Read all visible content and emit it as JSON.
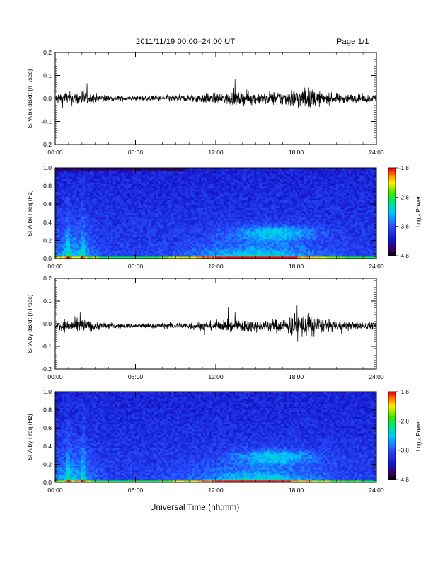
{
  "header": {
    "title": "2011/11/19   00:00–24:00 UT",
    "page": "Page 1/1"
  },
  "chart_data": [
    {
      "type": "line",
      "ylabel": "SPA bx dB/dt (nT/sec)",
      "ylim": [
        -0.2,
        0.2
      ],
      "yticks": [
        "0.2",
        "0.1",
        "0.0",
        "-0.1",
        "-0.2"
      ],
      "xlim": [
        0,
        24
      ],
      "xticks": [
        "00:00",
        "06:00",
        "12:00",
        "18:00",
        "24:00"
      ],
      "series": [
        {
          "x": [
            0,
            0.5,
            1,
            1.5,
            2,
            2.5,
            3,
            3.5,
            4,
            4.5,
            5,
            5.5,
            6,
            6.5,
            7,
            7.5,
            8,
            8.5,
            9,
            9.5,
            10,
            10.5,
            11,
            11.5,
            12,
            12.5,
            13,
            13.5,
            14,
            14.5,
            15,
            15.5,
            16,
            16.5,
            17,
            17.5,
            18,
            18.5,
            19,
            19.5,
            20,
            20.5,
            21,
            21.5,
            22,
            22.5,
            23,
            23.5,
            24
          ],
          "amplitude": [
            0.04,
            0.06,
            0.05,
            0.05,
            0.07,
            0.04,
            0.035,
            0.03,
            0.025,
            0.02,
            0.02,
            0.018,
            0.018,
            0.02,
            0.02,
            0.022,
            0.025,
            0.025,
            0.028,
            0.03,
            0.03,
            0.035,
            0.035,
            0.04,
            0.04,
            0.045,
            0.05,
            0.06,
            0.05,
            0.05,
            0.045,
            0.045,
            0.05,
            0.05,
            0.055,
            0.06,
            0.09,
            0.07,
            0.08,
            0.06,
            0.05,
            0.04,
            0.04,
            0.035,
            0.035,
            0.03,
            0.03,
            0.03,
            0.03
          ]
        }
      ]
    },
    {
      "type": "heatmap",
      "ylabel": "SPA bx Freq (Hz)",
      "ylim": [
        0.0,
        1.0
      ],
      "yticks": [
        "1.0",
        "0.8",
        "0.6",
        "0.4",
        "0.2",
        "0.0"
      ],
      "xlim": [
        0,
        24
      ],
      "xticks": [
        "00:00",
        "06:00",
        "12:00",
        "18:00",
        "24:00"
      ],
      "colorbar": {
        "label": "Log₁₀ Power",
        "range": [
          -4.8,
          -1.8
        ],
        "ticks": [
          "-1.8",
          "-2.8",
          "-3.8",
          "-4.8"
        ]
      }
    },
    {
      "type": "line",
      "ylabel": "SPA by dB/dt (nT/sec)",
      "ylim": [
        -0.2,
        0.2
      ],
      "yticks": [
        "0.2",
        "0.1",
        "0.0",
        "-0.1",
        "-0.2"
      ],
      "xlim": [
        0,
        24
      ],
      "xticks": [
        "00:00",
        "06:00",
        "12:00",
        "18:00",
        "24:00"
      ],
      "series": [
        {
          "x": [
            0,
            0.5,
            1,
            1.5,
            2,
            2.5,
            3,
            3.5,
            4,
            4.5,
            5,
            5.5,
            6,
            6.5,
            7,
            7.5,
            8,
            8.5,
            9,
            9.5,
            10,
            10.5,
            11,
            11.5,
            12,
            12.5,
            13,
            13.5,
            14,
            14.5,
            15,
            15.5,
            16,
            16.5,
            17,
            17.5,
            18,
            18.5,
            19,
            19.5,
            20,
            20.5,
            21,
            21.5,
            22,
            22.5,
            23,
            23.5,
            24
          ],
          "amplitude": [
            0.04,
            0.05,
            0.05,
            0.05,
            0.06,
            0.04,
            0.035,
            0.03,
            0.025,
            0.02,
            0.02,
            0.018,
            0.018,
            0.02,
            0.02,
            0.02,
            0.022,
            0.025,
            0.025,
            0.028,
            0.03,
            0.03,
            0.035,
            0.035,
            0.04,
            0.04,
            0.045,
            0.05,
            0.06,
            0.05,
            0.045,
            0.045,
            0.05,
            0.05,
            0.06,
            0.07,
            0.1,
            0.09,
            0.1,
            0.07,
            0.05,
            0.045,
            0.04,
            0.04,
            0.035,
            0.03,
            0.03,
            0.03,
            0.03
          ]
        }
      ]
    },
    {
      "type": "heatmap",
      "ylabel": "SPA by Freq (Hz)",
      "ylim": [
        0.0,
        1.0
      ],
      "yticks": [
        "1.0",
        "0.8",
        "0.6",
        "0.4",
        "0.2",
        "0.0"
      ],
      "xlim": [
        0,
        24
      ],
      "xticks": [
        "00:00",
        "06:00",
        "12:00",
        "18:00",
        "24:00"
      ],
      "colorbar": {
        "label": "Log₁₀ Power",
        "range": [
          -4.8,
          -1.8
        ],
        "ticks": [
          "-1.8",
          "-2.8",
          "-3.8",
          "-4.8"
        ]
      }
    }
  ],
  "xlabel": "Universal Time (hh:mm)"
}
